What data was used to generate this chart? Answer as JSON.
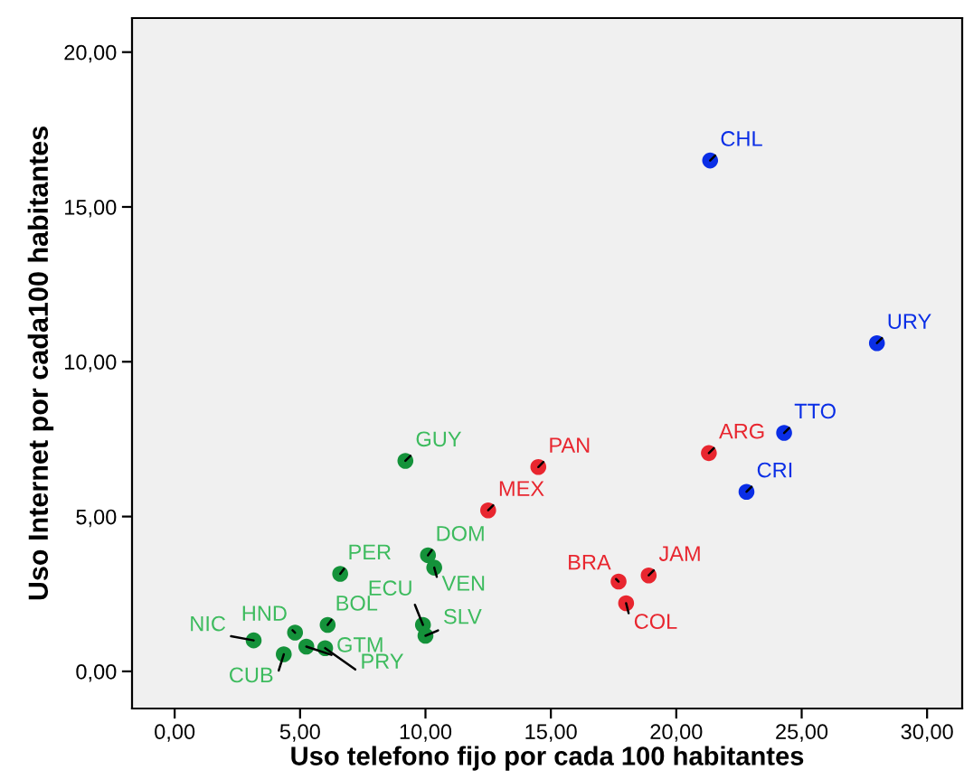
{
  "chart_data": {
    "type": "scatter",
    "xlabel": "Uso telefono fijo por cada 100 habitantes",
    "ylabel": "Uso Internet por cada100 habitantes",
    "xlim": [
      -1.7,
      31.4
    ],
    "ylim": [
      -1.2,
      21.1
    ],
    "xticks": [
      {
        "value": 0,
        "label": "0,00"
      },
      {
        "value": 5,
        "label": "5,00"
      },
      {
        "value": 10,
        "label": "10,00"
      },
      {
        "value": 15,
        "label": "15,00"
      },
      {
        "value": 20,
        "label": "20,00"
      },
      {
        "value": 25,
        "label": "25,00"
      },
      {
        "value": 30,
        "label": "30,00"
      }
    ],
    "yticks": [
      {
        "value": 0,
        "label": "0,00"
      },
      {
        "value": 5,
        "label": "5,00"
      },
      {
        "value": 10,
        "label": "10,00"
      },
      {
        "value": 15,
        "label": "15,00"
      },
      {
        "value": 20,
        "label": "20,00"
      }
    ],
    "grid": false,
    "legend": false,
    "marker": "circle",
    "series": [
      {
        "color": "#0a2ee6",
        "x": [
          21.35,
          28.0,
          24.3,
          22.8
        ],
        "values": [
          16.5,
          10.6,
          7.7,
          5.8
        ]
      },
      {
        "color": "#e8262f",
        "x": [
          21.3,
          14.5,
          12.5,
          17.7,
          18.9,
          18.0
        ],
        "values": [
          7.05,
          6.6,
          5.2,
          2.9,
          3.1,
          2.2
        ]
      },
      {
        "color": "#14923a",
        "x": [
          9.2,
          10.1,
          10.35,
          6.6,
          9.9,
          10.0,
          6.1,
          4.8,
          3.15,
          4.35,
          5.25,
          6.0
        ],
        "values": [
          6.8,
          3.75,
          3.35,
          3.15,
          1.5,
          1.15,
          1.5,
          1.25,
          1.0,
          0.55,
          0.8,
          0.75
        ]
      }
    ],
    "annotations": [
      {
        "text": "CHL",
        "x": 21.35,
        "y": 16.5
      },
      {
        "text": "URY",
        "x": 28.0,
        "y": 10.6
      },
      {
        "text": "TTO",
        "x": 24.3,
        "y": 7.7
      },
      {
        "text": "CRI",
        "x": 22.8,
        "y": 5.8
      },
      {
        "text": "ARG",
        "x": 21.3,
        "y": 7.05
      },
      {
        "text": "PAN",
        "x": 14.5,
        "y": 6.6
      },
      {
        "text": "MEX",
        "x": 12.5,
        "y": 5.2
      },
      {
        "text": "BRA",
        "x": 17.7,
        "y": 2.9
      },
      {
        "text": "JAM",
        "x": 18.9,
        "y": 3.1
      },
      {
        "text": "COL",
        "x": 18.0,
        "y": 2.2
      },
      {
        "text": "GUY",
        "x": 9.2,
        "y": 6.8
      },
      {
        "text": "DOM",
        "x": 10.1,
        "y": 3.75
      },
      {
        "text": "VEN",
        "x": 10.35,
        "y": 3.35
      },
      {
        "text": "PER",
        "x": 6.6,
        "y": 3.15
      },
      {
        "text": "ECU",
        "x": 9.9,
        "y": 1.5
      },
      {
        "text": "SLV",
        "x": 10.0,
        "y": 1.15
      },
      {
        "text": "BOL",
        "x": 6.1,
        "y": 1.5
      },
      {
        "text": "HND",
        "x": 4.8,
        "y": 1.25
      },
      {
        "text": "NIC",
        "x": 3.15,
        "y": 1.0
      },
      {
        "text": "CUB",
        "x": 4.35,
        "y": 0.55
      },
      {
        "text": "GTM",
        "x": 5.25,
        "y": 0.8
      },
      {
        "text": "PRY",
        "x": 6.0,
        "y": 0.75
      }
    ]
  }
}
